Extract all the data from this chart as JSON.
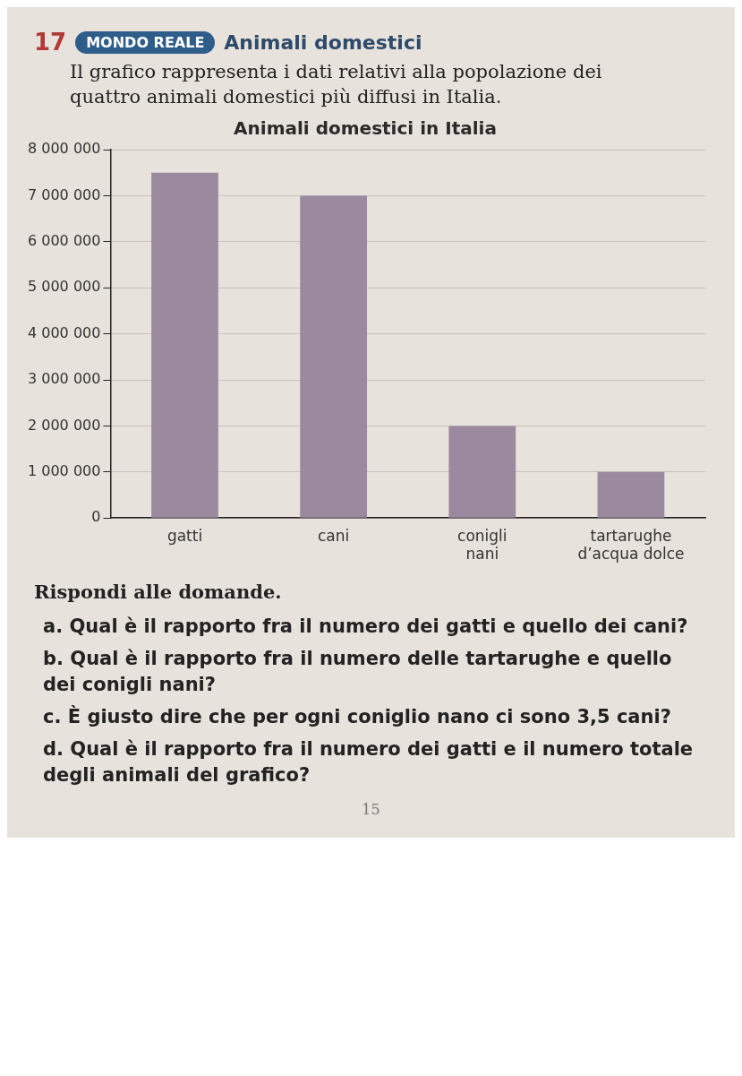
{
  "chart_data": {
    "type": "bar",
    "title": "Animali domestici in Italia",
    "categories": [
      "gatti",
      "cani",
      "conigli\nnani",
      "tartarughe\nd’acqua dolce"
    ],
    "values": [
      7500000,
      7000000,
      2000000,
      1000000
    ],
    "color": "#9b8a9f",
    "ylim": [
      0,
      8000000
    ],
    "yticks": [
      {
        "value": 0,
        "label": "0"
      },
      {
        "value": 1000000,
        "label": "1 000 000"
      },
      {
        "value": 2000000,
        "label": "2 000 000"
      },
      {
        "value": 3000000,
        "label": "3 000 000"
      },
      {
        "value": 4000000,
        "label": "4 000 000"
      },
      {
        "value": 5000000,
        "label": "5 000 000"
      },
      {
        "value": 6000000,
        "label": "6 000 000"
      },
      {
        "value": 7000000,
        "label": "7 000 000"
      },
      {
        "value": 8000000,
        "label": "8 000 000"
      }
    ],
    "grid": "y",
    "annotations": [
      "17",
      "MONDO REALE",
      "Animali domestici",
      "Il grafico rappresenta i dati relativi alla popolazione dei quattro animali domestici più diffusi in Italia.",
      "Rispondi alle domande.",
      "a. Qual è il rapporto fra il numero dei gatti e quello dei cani?",
      "b. Qual è il rapporto fra il numero delle tartarughe e quello dei conigli nani?",
      "c. È giusto dire che per ogni coniglio nano ci sono 3,5 cani?",
      "d. Qual è il rapporto fra il numero dei gatti e il numero totale degli animali del grafico?",
      "15"
    ]
  }
}
